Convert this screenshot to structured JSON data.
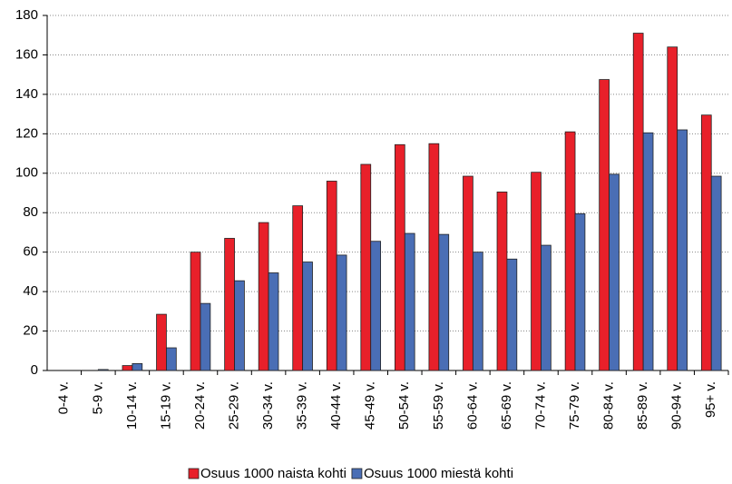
{
  "chart_data": {
    "type": "bar",
    "categories": [
      "0-4 v.",
      "5-9 v.",
      "10-14 v.",
      "15-19 v.",
      "20-24 v.",
      "25-29 v.",
      "30-34 v.",
      "35-39 v.",
      "40-44 v.",
      "45-49 v.",
      "50-54 v.",
      "55-59 v.",
      "60-64 v.",
      "65-69 v.",
      "70-74 v.",
      "75-79 v.",
      "80-84 v.",
      "85-89 v.",
      "90-94 v.",
      "95+ v."
    ],
    "series": [
      {
        "name": "Osuus 1000 naista kohti",
        "color": "#e8202a",
        "values": [
          0,
          0,
          2.5,
          28.5,
          60,
          67,
          75,
          83.5,
          96,
          104.5,
          114.5,
          115,
          98.5,
          90.5,
          100.5,
          121,
          147.5,
          171,
          164,
          129.5
        ]
      },
      {
        "name": "Osuus 1000 miestä kohti",
        "color": "#4a6eb5",
        "values": [
          0,
          0.5,
          3.5,
          11.5,
          34,
          45.5,
          49.5,
          55,
          58.5,
          65.5,
          69.5,
          69,
          60,
          56.5,
          63.5,
          79.5,
          99.5,
          120.5,
          122,
          98.5
        ]
      }
    ],
    "ylim": [
      0,
      180
    ],
    "yticks": [
      0,
      20,
      40,
      60,
      80,
      100,
      120,
      140,
      160,
      180
    ],
    "grid": true,
    "legend": "bottom"
  }
}
